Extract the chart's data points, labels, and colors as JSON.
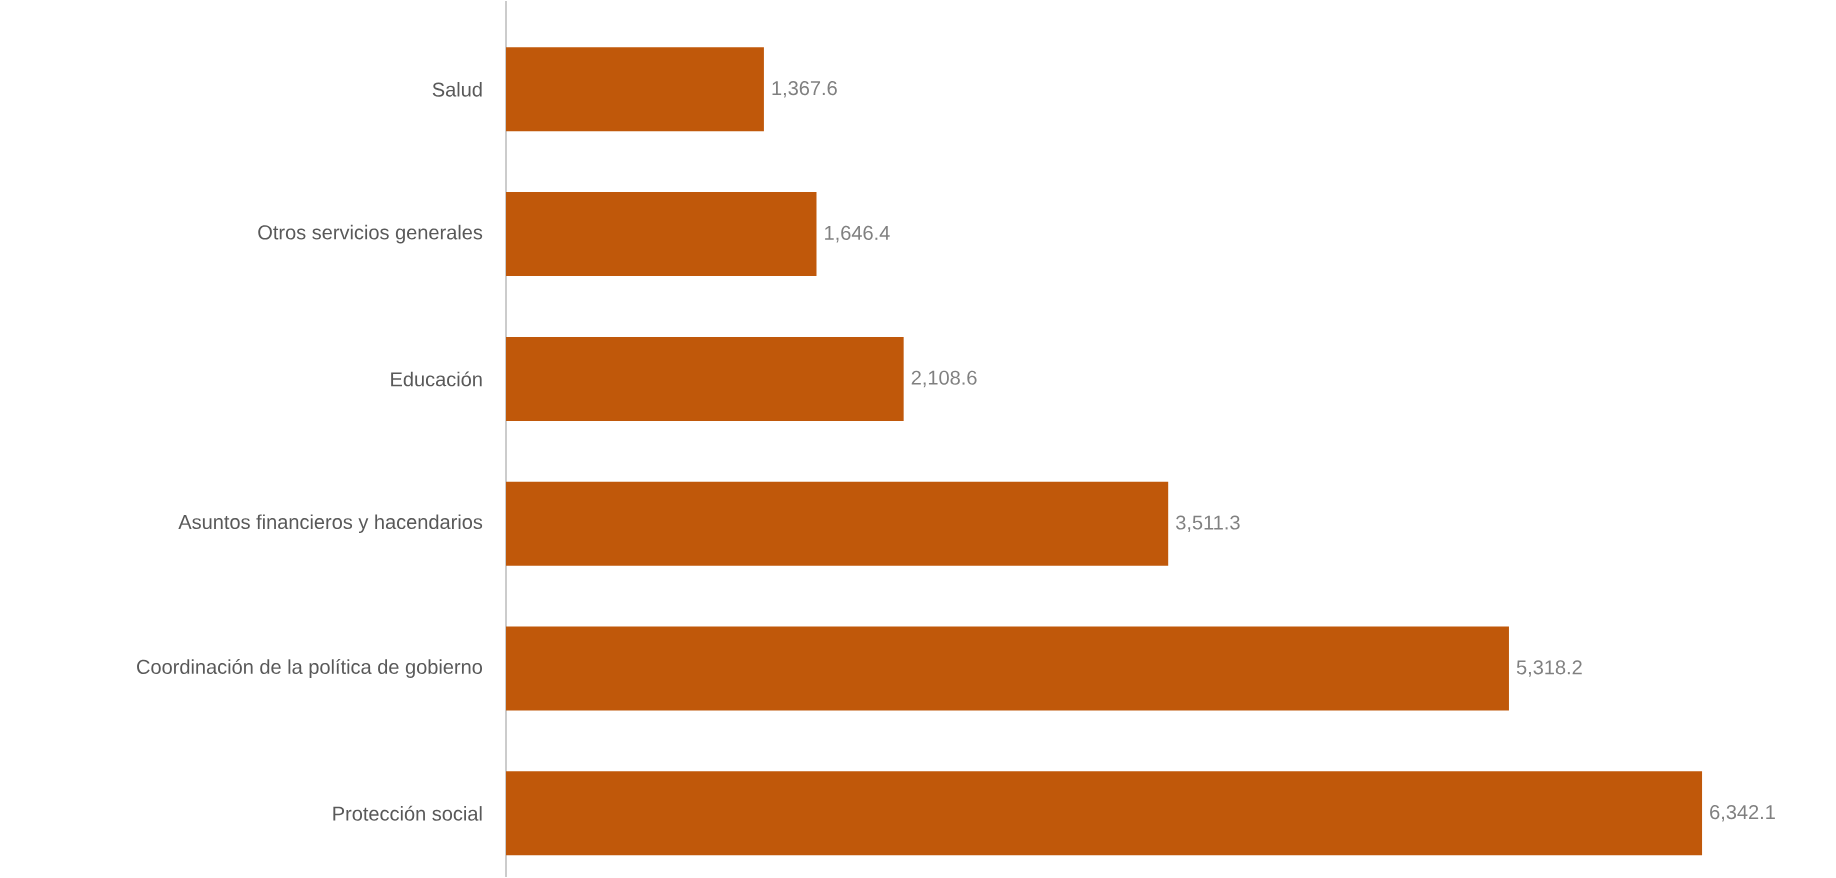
{
  "chart_data": {
    "type": "bar",
    "orientation": "horizontal",
    "categories": [
      "Salud",
      "Otros servicios generales",
      "Educación",
      "Asuntos financieros y hacendarios",
      "Coordinación de la política de gobierno",
      "Protección social"
    ],
    "values": [
      1367.6,
      1646.4,
      2108.6,
      3511.3,
      5318.2,
      6342.1
    ],
    "value_labels": [
      "1,367.6",
      "1,646.4",
      "2,108.6",
      "3,511.3",
      "5,318.2",
      "6,342.1"
    ],
    "color": "#c0580a"
  }
}
